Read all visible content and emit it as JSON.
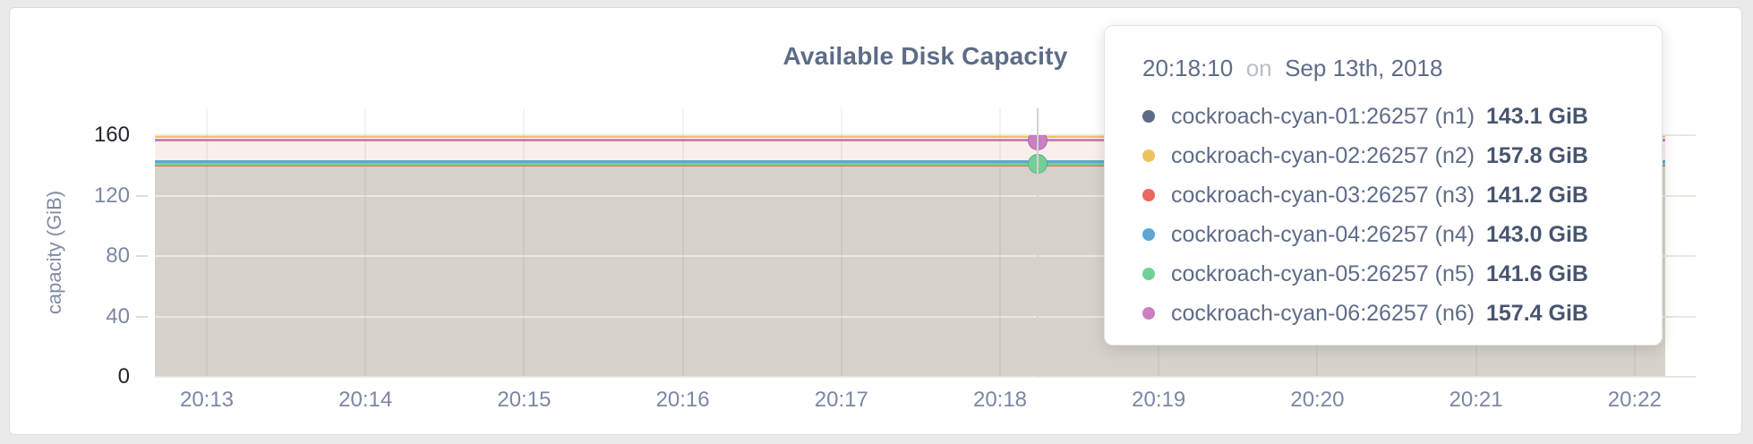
{
  "chart_data": {
    "type": "area",
    "title": "Available Disk Capacity",
    "xlabel": "",
    "ylabel": "capacity (GiB)",
    "x_ticks": [
      "20:13",
      "20:14",
      "20:15",
      "20:16",
      "20:17",
      "20:18",
      "20:19",
      "20:20",
      "20:21",
      "20:22"
    ],
    "y_ticks": [
      0,
      40,
      80,
      120,
      160
    ],
    "ylim": [
      0,
      177.8
    ],
    "grid": true,
    "legend_position": "hover-tooltip",
    "series": [
      {
        "name": "cockroach-cyan-01:26257 (n1)",
        "node": "n1",
        "color": "#5c6b88",
        "value_gib": 143.1,
        "display": "143.1 GiB"
      },
      {
        "name": "cockroach-cyan-02:26257 (n2)",
        "node": "n2",
        "color": "#eec35e",
        "value_gib": 157.8,
        "display": "157.8 GiB"
      },
      {
        "name": "cockroach-cyan-03:26257 (n3)",
        "node": "n3",
        "color": "#e8685f",
        "value_gib": 141.2,
        "display": "141.2 GiB"
      },
      {
        "name": "cockroach-cyan-04:26257 (n4)",
        "node": "n4",
        "color": "#5fa5d7",
        "value_gib": 143.0,
        "display": "143.0 GiB"
      },
      {
        "name": "cockroach-cyan-05:26257 (n5)",
        "node": "n5",
        "color": "#73cf97",
        "value_gib": 141.6,
        "display": "141.6 GiB"
      },
      {
        "name": "cockroach-cyan-06:26257 (n6)",
        "node": "n6",
        "color": "#c97fc0",
        "value_gib": 157.4,
        "display": "157.4 GiB"
      }
    ],
    "area_colors": {
      "upper_band": "#f8efec",
      "lower_band": "#d6d2ca"
    },
    "hover_markers": [
      "n6",
      "n5"
    ]
  },
  "tooltip": {
    "time": "20:18:10",
    "connector": "on",
    "date": "Sep 13th, 2018"
  },
  "colors": {
    "title_text": "#5d6c87",
    "axis_text": "#7b87a2",
    "axis_text_extreme": "#22262c",
    "tooltip_value_text": "#48556f"
  }
}
